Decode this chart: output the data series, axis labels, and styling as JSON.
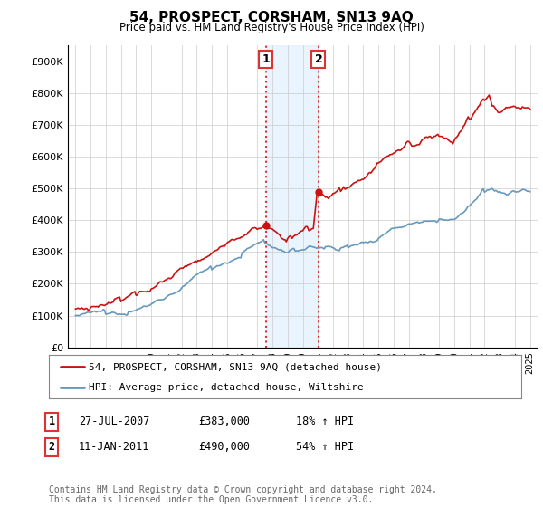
{
  "title": "54, PROSPECT, CORSHAM, SN13 9AQ",
  "subtitle": "Price paid vs. HM Land Registry's House Price Index (HPI)",
  "ylabel_ticks": [
    "£0",
    "£100K",
    "£200K",
    "£300K",
    "£400K",
    "£500K",
    "£600K",
    "£700K",
    "£800K",
    "£900K"
  ],
  "ytick_values": [
    0,
    100000,
    200000,
    300000,
    400000,
    500000,
    600000,
    700000,
    800000,
    900000
  ],
  "ylim": [
    0,
    950000
  ],
  "xlim_start": 1994.5,
  "xlim_end": 2025.5,
  "transaction1": {
    "date_x": 2007.57,
    "price": 383000,
    "label": "1"
  },
  "transaction2": {
    "date_x": 2011.04,
    "price": 490000,
    "label": "2"
  },
  "shade_color": "#ddeeff",
  "shade_alpha": 0.6,
  "vline_color": "#dd3333",
  "vline_style": ":",
  "legend_entries": [
    "54, PROSPECT, CORSHAM, SN13 9AQ (detached house)",
    "HPI: Average price, detached house, Wiltshire"
  ],
  "red_line_color": "#cc1111",
  "blue_line_color": "#6699bb",
  "table_rows": [
    [
      "1",
      "27-JUL-2007",
      "£383,000",
      "18% ↑ HPI"
    ],
    [
      "2",
      "11-JAN-2011",
      "£490,000",
      "54% ↑ HPI"
    ]
  ],
  "footer": "Contains HM Land Registry data © Crown copyright and database right 2024.\nThis data is licensed under the Open Government Licence v3.0.",
  "background_color": "#ffffff",
  "grid_color": "#cccccc"
}
